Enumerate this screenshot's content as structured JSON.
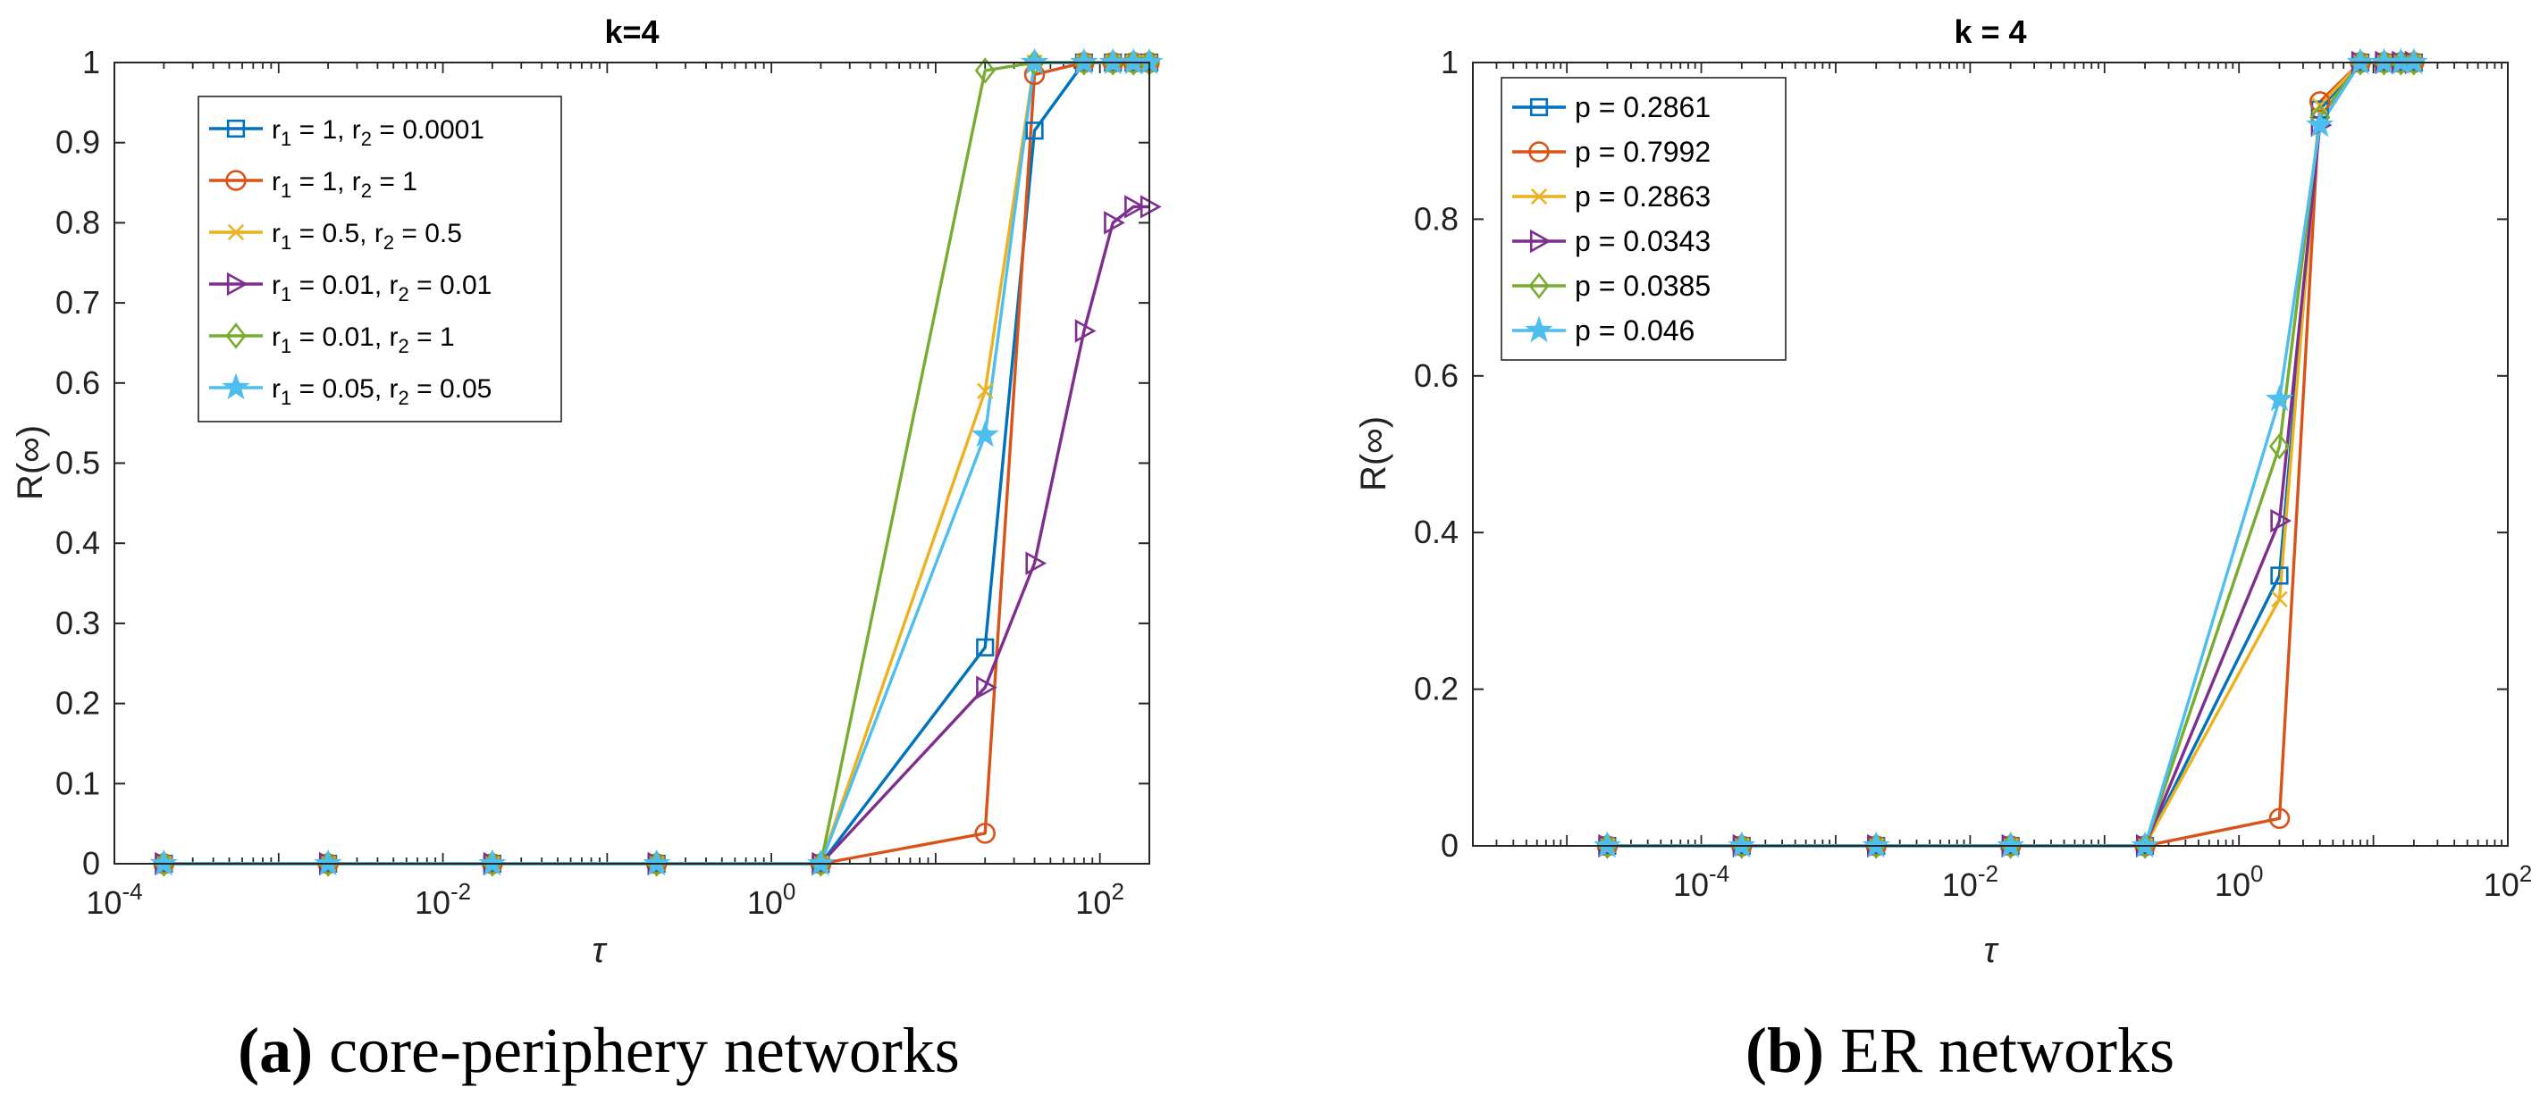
{
  "colors": {
    "blue": "#0072BD",
    "orange": "#D95319",
    "yellow": "#EDB120",
    "purple": "#7E2F8E",
    "green": "#77AC30",
    "cyan": "#4DBEEE"
  },
  "chart_data": [
    {
      "type": "line",
      "title": "k=4",
      "xlabel": "τ",
      "ylabel": "R(∞)",
      "xscale": "log",
      "xlim": [
        0.0001,
        200
      ],
      "ylim": [
        0,
        1
      ],
      "legend_position": "top-left",
      "caption": {
        "label": "(a)",
        "text": " core-periphery networks"
      },
      "xticks": [
        {
          "base": "10",
          "exp": "-4",
          "value": 0.0001
        },
        {
          "base": "10",
          "exp": "-2",
          "value": 0.01
        },
        {
          "base": "10",
          "exp": "0",
          "value": 1
        },
        {
          "base": "10",
          "exp": "2",
          "value": 100
        }
      ],
      "yticks": [
        {
          "label": "0",
          "value": 0
        },
        {
          "label": "0.1",
          "value": 0.1
        },
        {
          "label": "0.2",
          "value": 0.2
        },
        {
          "label": "0.3",
          "value": 0.3
        },
        {
          "label": "0.4",
          "value": 0.4
        },
        {
          "label": "0.5",
          "value": 0.5
        },
        {
          "label": "0.6",
          "value": 0.6
        },
        {
          "label": "0.7",
          "value": 0.7
        },
        {
          "label": "0.8",
          "value": 0.8
        },
        {
          "label": "0.9",
          "value": 0.9
        },
        {
          "label": "1",
          "value": 1
        }
      ],
      "series": [
        {
          "name": "r1 = 1, r2 = 0.0001",
          "legend": [
            [
              "r",
              ""
            ],
            [
              "1",
              "sub"
            ],
            [
              " = 1, r",
              ""
            ],
            [
              "2",
              "sub"
            ],
            [
              " = 0.0001",
              ""
            ]
          ],
          "color": "#0072BD",
          "marker": "square",
          "x": [
            0.0002,
            0.002,
            0.02,
            0.2,
            2,
            20,
            40,
            80,
            120,
            160,
            200
          ],
          "y": [
            0,
            0,
            0,
            0,
            0,
            0.27,
            0.915,
            1,
            1,
            1,
            1
          ]
        },
        {
          "name": "r1 = 1, r2 = 1",
          "legend": [
            [
              "r",
              ""
            ],
            [
              "1",
              "sub"
            ],
            [
              " = 1, r",
              ""
            ],
            [
              "2",
              "sub"
            ],
            [
              " = 1",
              ""
            ]
          ],
          "color": "#D95319",
          "marker": "circle",
          "x": [
            0.0002,
            0.002,
            0.02,
            0.2,
            2,
            20,
            40,
            80,
            120,
            160,
            200
          ],
          "y": [
            0,
            0,
            0,
            0,
            0,
            0.038,
            0.985,
            1,
            1,
            1,
            1
          ]
        },
        {
          "name": "r1 = 0.5, r2 = 0.5",
          "legend": [
            [
              "r",
              ""
            ],
            [
              "1",
              "sub"
            ],
            [
              " = 0.5, r",
              ""
            ],
            [
              "2",
              "sub"
            ],
            [
              " = 0.5",
              ""
            ]
          ],
          "color": "#EDB120",
          "marker": "x",
          "x": [
            0.0002,
            0.002,
            0.02,
            0.2,
            2,
            20,
            40,
            80,
            120,
            160,
            200
          ],
          "y": [
            0,
            0,
            0,
            0,
            0,
            0.59,
            1,
            1,
            1,
            1,
            1
          ]
        },
        {
          "name": "r1 = 0.01, r2 = 0.01",
          "legend": [
            [
              "r",
              ""
            ],
            [
              "1",
              "sub"
            ],
            [
              " = 0.01, r",
              ""
            ],
            [
              "2",
              "sub"
            ],
            [
              " = 0.01",
              ""
            ]
          ],
          "color": "#7E2F8E",
          "marker": "triangle-right",
          "x": [
            0.0002,
            0.002,
            0.02,
            0.2,
            2,
            20,
            40,
            80,
            120,
            160,
            200
          ],
          "y": [
            0,
            0,
            0,
            0,
            0,
            0.22,
            0.375,
            0.665,
            0.8,
            0.82,
            0.82
          ]
        },
        {
          "name": "r1 = 0.01, r2 = 1",
          "legend": [
            [
              "r",
              ""
            ],
            [
              "1",
              "sub"
            ],
            [
              " = 0.01, r",
              ""
            ],
            [
              "2",
              "sub"
            ],
            [
              " = 1",
              ""
            ]
          ],
          "color": "#77AC30",
          "marker": "diamond",
          "x": [
            0.0002,
            0.002,
            0.02,
            0.2,
            2,
            20,
            40,
            80,
            120,
            160,
            200
          ],
          "y": [
            0,
            0,
            0,
            0,
            0,
            0.99,
            1,
            1,
            1,
            1,
            1
          ]
        },
        {
          "name": "r1 = 0.05, r2 = 0.05",
          "legend": [
            [
              "r",
              ""
            ],
            [
              "1",
              "sub"
            ],
            [
              " = 0.05, r",
              ""
            ],
            [
              "2",
              "sub"
            ],
            [
              " = 0.05",
              ""
            ]
          ],
          "color": "#4DBEEE",
          "marker": "star",
          "x": [
            0.0002,
            0.002,
            0.02,
            0.2,
            2,
            20,
            40,
            80,
            120,
            160,
            200
          ],
          "y": [
            0,
            0,
            0,
            0,
            0,
            0.535,
            1,
            1,
            1,
            1,
            1
          ]
        }
      ]
    },
    {
      "type": "line",
      "title": "k = 4",
      "xlabel": "τ",
      "ylabel": "R(∞)",
      "xscale": "log",
      "xlim": [
        2e-06,
        100
      ],
      "ylim": [
        0,
        1
      ],
      "legend_position": "top-left",
      "caption": {
        "label": "(b)",
        "text": " ER networks"
      },
      "xticks": [
        {
          "base": "10",
          "exp": "-4",
          "value": 0.0001
        },
        {
          "base": "10",
          "exp": "-2",
          "value": 0.01
        },
        {
          "base": "10",
          "exp": "0",
          "value": 1
        },
        {
          "base": "10",
          "exp": "2",
          "value": 100
        }
      ],
      "yticks": [
        {
          "label": "0",
          "value": 0
        },
        {
          "label": "0.2",
          "value": 0.2
        },
        {
          "label": "0.4",
          "value": 0.4
        },
        {
          "label": "0.6",
          "value": 0.6
        },
        {
          "label": "0.8",
          "value": 0.8
        },
        {
          "label": "1",
          "value": 1
        }
      ],
      "series": [
        {
          "name": "p = 0.2861",
          "legend": [
            [
              "p = 0.2861",
              ""
            ]
          ],
          "color": "#0072BD",
          "marker": "square",
          "x": [
            2e-05,
            0.0002,
            0.002,
            0.02,
            0.2,
            2,
            4,
            8,
            12,
            16,
            20
          ],
          "y": [
            0,
            0,
            0,
            0,
            0,
            0.345,
            0.94,
            1,
            1,
            1,
            1
          ]
        },
        {
          "name": "p = 0.7992",
          "legend": [
            [
              "p = 0.7992",
              ""
            ]
          ],
          "color": "#D95319",
          "marker": "circle",
          "x": [
            2e-05,
            0.0002,
            0.002,
            0.02,
            0.2,
            2,
            4,
            8,
            12,
            16,
            20
          ],
          "y": [
            0,
            0,
            0,
            0,
            0,
            0.035,
            0.95,
            1,
            1,
            1,
            1
          ]
        },
        {
          "name": "p = 0.2863",
          "legend": [
            [
              "p = 0.2863",
              ""
            ]
          ],
          "color": "#EDB120",
          "marker": "x",
          "x": [
            2e-05,
            0.0002,
            0.002,
            0.02,
            0.2,
            2,
            4,
            8,
            12,
            16,
            20
          ],
          "y": [
            0,
            0,
            0,
            0,
            0,
            0.315,
            0.945,
            1,
            1,
            1,
            1
          ]
        },
        {
          "name": "p = 0.0343",
          "legend": [
            [
              "p = 0.0343",
              ""
            ]
          ],
          "color": "#7E2F8E",
          "marker": "triangle-right",
          "x": [
            2e-05,
            0.0002,
            0.002,
            0.02,
            0.2,
            2,
            4,
            8,
            12,
            16,
            20
          ],
          "y": [
            0,
            0,
            0,
            0,
            0,
            0.415,
            0.92,
            1,
            1,
            1,
            1
          ]
        },
        {
          "name": "p = 0.0385",
          "legend": [
            [
              "p = 0.0385",
              ""
            ]
          ],
          "color": "#77AC30",
          "marker": "diamond",
          "x": [
            2e-05,
            0.0002,
            0.002,
            0.02,
            0.2,
            2,
            4,
            8,
            12,
            16,
            20
          ],
          "y": [
            0,
            0,
            0,
            0,
            0,
            0.51,
            0.93,
            1,
            1,
            1,
            1
          ]
        },
        {
          "name": "p = 0.046",
          "legend": [
            [
              "p = 0.046",
              ""
            ]
          ],
          "color": "#4DBEEE",
          "marker": "star",
          "x": [
            2e-05,
            0.0002,
            0.002,
            0.02,
            0.2,
            2,
            4,
            8,
            12,
            16,
            20
          ],
          "y": [
            0,
            0,
            0,
            0,
            0,
            0.57,
            0.92,
            1,
            1,
            1,
            1
          ]
        }
      ]
    }
  ]
}
